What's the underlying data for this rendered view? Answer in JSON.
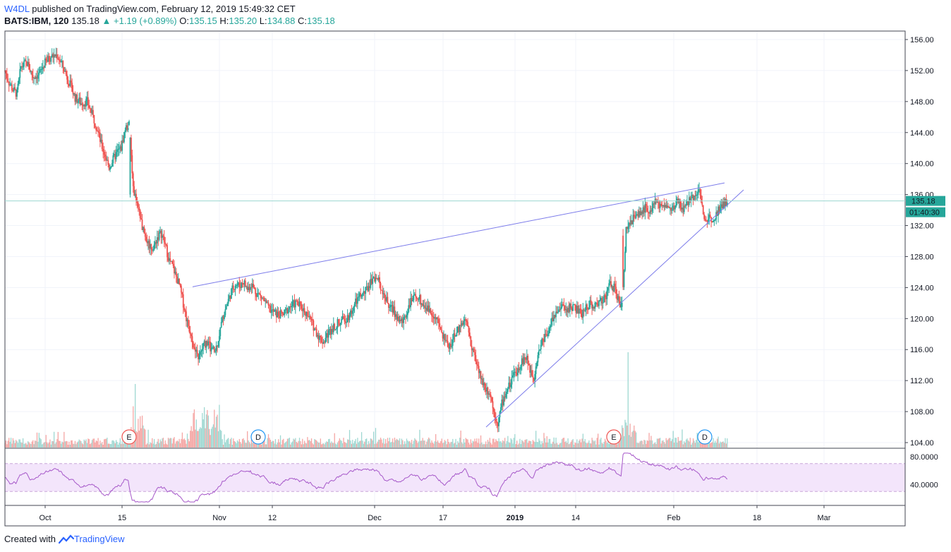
{
  "header": {
    "author": "W4DL",
    "published_text": "published on TradingView.com, February 12, 2019 15:49:32 CET",
    "symbol": "BATS:IBM, 120",
    "last": "135.18",
    "change": "+1.19 (+0.89%)",
    "open_label": "O:",
    "open": "135.15",
    "high_label": "H:",
    "high": "135.20",
    "low_label": "L:",
    "low": "134.88",
    "close_label": "C:",
    "close": "135.18"
  },
  "footer": {
    "created_with": "Created with",
    "brand": "TradingView"
  },
  "colors": {
    "up": "#26a69a",
    "down": "#ef5350",
    "trendline": "#7b7bea",
    "rsi_line": "#a658c9",
    "rsi_band": "#f3e5fb",
    "price_label": "#26a69a"
  },
  "chart_data": {
    "type": "candlestick",
    "title": "BATS:IBM, 120",
    "price_axis": {
      "ticks": [
        "156.00",
        "152.00",
        "148.00",
        "144.00",
        "140.00",
        "136.00",
        "132.00",
        "128.00",
        "124.00",
        "120.00",
        "116.00",
        "112.00",
        "108.00",
        "104.00"
      ],
      "range": [
        103.2,
        157.7
      ]
    },
    "current_price": "135.18",
    "countdown": "01:40:30",
    "time_axis": {
      "labels": [
        "Oct",
        "15",
        "Nov",
        "12",
        "Dec",
        "17",
        "2019",
        "14",
        "Feb",
        "18",
        "Mar"
      ]
    },
    "rsi": {
      "ticks": [
        "80.0000",
        "40.0000"
      ],
      "band": [
        30,
        70
      ],
      "range": [
        10,
        90
      ]
    },
    "events": [
      {
        "label": "E",
        "type": "earnings"
      },
      {
        "label": "D",
        "type": "dividend"
      },
      {
        "label": "E",
        "type": "earnings"
      },
      {
        "label": "D",
        "type": "dividend"
      }
    ],
    "trendlines": [
      {
        "from": [
          124.1,
          "Oct 29"
        ],
        "to": [
          137.5,
          "Feb 11"
        ]
      },
      {
        "from": [
          106.0,
          "Dec 24"
        ],
        "to": [
          136.6,
          "Feb 13"
        ]
      }
    ],
    "price_path": [
      [
        152.0,
        0
      ],
      [
        150.5,
        4
      ],
      [
        149.5,
        8
      ],
      [
        149.0,
        12
      ],
      [
        152.5,
        16
      ],
      [
        153.0,
        22
      ],
      [
        151.2,
        28
      ],
      [
        151.5,
        34
      ],
      [
        153.0,
        40
      ],
      [
        153.8,
        46
      ],
      [
        154.0,
        52
      ],
      [
        152.5,
        58
      ],
      [
        150.5,
        64
      ],
      [
        148.5,
        70
      ],
      [
        147.8,
        76
      ],
      [
        148.0,
        82
      ],
      [
        146.0,
        88
      ],
      [
        144.5,
        92
      ],
      [
        142.5,
        96
      ],
      [
        141.0,
        100
      ],
      [
        139.5,
        104
      ],
      [
        140.5,
        108
      ],
      [
        141.5,
        112
      ],
      [
        142.0,
        116
      ],
      [
        144.5,
        120
      ],
      [
        145.0,
        124
      ],
      [
        136.8,
        128
      ],
      [
        134.5,
        132
      ],
      [
        132.5,
        136
      ],
      [
        130.5,
        140
      ],
      [
        129.5,
        144
      ],
      [
        129.0,
        148
      ],
      [
        130.5,
        152
      ],
      [
        131.0,
        156
      ],
      [
        129.5,
        160
      ],
      [
        127.5,
        164
      ],
      [
        126.5,
        168
      ],
      [
        125.0,
        172
      ],
      [
        124.3,
        174
      ],
      [
        122.0,
        178
      ],
      [
        119.5,
        182
      ],
      [
        118.0,
        186
      ],
      [
        115.5,
        190
      ],
      [
        115.0,
        194
      ],
      [
        116.5,
        198
      ],
      [
        117.0,
        202
      ],
      [
        116.0,
        206
      ],
      [
        115.8,
        210
      ],
      [
        118.0,
        214
      ],
      [
        120.5,
        218
      ],
      [
        122.0,
        222
      ],
      [
        123.5,
        226
      ],
      [
        124.5,
        230
      ],
      [
        124.2,
        234
      ],
      [
        124.8,
        238
      ],
      [
        123.8,
        242
      ],
      [
        124.5,
        246
      ],
      [
        123.5,
        250
      ],
      [
        123.0,
        254
      ],
      [
        122.5,
        258
      ],
      [
        121.5,
        262
      ],
      [
        121.0,
        266
      ],
      [
        120.5,
        272
      ],
      [
        120.5,
        278
      ],
      [
        121.5,
        284
      ],
      [
        122.0,
        290
      ],
      [
        121.5,
        296
      ],
      [
        120.5,
        302
      ],
      [
        119.5,
        306
      ],
      [
        118.5,
        310
      ],
      [
        117.5,
        314
      ],
      [
        117.0,
        318
      ],
      [
        118.0,
        322
      ],
      [
        119.0,
        328
      ],
      [
        119.5,
        334
      ],
      [
        120.0,
        340
      ],
      [
        120.5,
        344
      ],
      [
        121.5,
        348
      ],
      [
        122.5,
        352
      ],
      [
        123.0,
        356
      ],
      [
        123.5,
        360
      ],
      [
        124.5,
        364
      ],
      [
        125.5,
        368
      ],
      [
        125.0,
        372
      ],
      [
        124.0,
        376
      ],
      [
        122.5,
        380
      ],
      [
        121.5,
        384
      ],
      [
        121.0,
        388
      ],
      [
        120.0,
        392
      ],
      [
        119.5,
        396
      ],
      [
        120.5,
        400
      ],
      [
        122.0,
        404
      ],
      [
        122.5,
        408
      ],
      [
        123.0,
        412
      ],
      [
        122.0,
        416
      ],
      [
        121.5,
        420
      ],
      [
        121.0,
        424
      ],
      [
        120.5,
        428
      ],
      [
        119.5,
        432
      ],
      [
        118.0,
        436
      ],
      [
        117.0,
        440
      ],
      [
        116.5,
        444
      ],
      [
        117.5,
        448
      ],
      [
        118.5,
        452
      ],
      [
        119.5,
        456
      ],
      [
        120.0,
        460
      ],
      [
        117.5,
        464
      ],
      [
        115.5,
        468
      ],
      [
        113.5,
        472
      ],
      [
        112.0,
        476
      ],
      [
        111.0,
        480
      ],
      [
        110.5,
        484
      ],
      [
        108.0,
        488
      ],
      [
        106.5,
        492
      ],
      [
        109.0,
        496
      ],
      [
        110.5,
        500
      ],
      [
        111.5,
        504
      ],
      [
        112.5,
        508
      ],
      [
        113.5,
        512
      ],
      [
        114.5,
        516
      ],
      [
        115.0,
        520
      ],
      [
        113.5,
        524
      ],
      [
        112.5,
        528
      ],
      [
        115.5,
        532
      ],
      [
        117.0,
        536
      ],
      [
        118.0,
        540
      ],
      [
        119.0,
        544
      ],
      [
        120.5,
        548
      ],
      [
        121.0,
        552
      ],
      [
        121.5,
        556
      ],
      [
        121.0,
        560
      ],
      [
        121.5,
        564
      ],
      [
        121.5,
        568
      ],
      [
        121.0,
        572
      ],
      [
        120.5,
        576
      ],
      [
        121.5,
        580
      ],
      [
        122.0,
        584
      ],
      [
        121.5,
        588
      ],
      [
        122.0,
        592
      ],
      [
        122.5,
        596
      ],
      [
        123.0,
        600
      ],
      [
        124.5,
        604
      ],
      [
        124.0,
        608
      ],
      [
        122.5,
        612
      ],
      [
        121.5,
        616
      ],
      [
        131.5,
        620
      ],
      [
        132.5,
        624
      ],
      [
        133.0,
        628
      ],
      [
        133.5,
        632
      ],
      [
        134.0,
        636
      ],
      [
        134.5,
        640
      ],
      [
        134.0,
        644
      ],
      [
        135.0,
        648
      ],
      [
        134.5,
        652
      ],
      [
        135.0,
        656
      ],
      [
        134.5,
        660
      ],
      [
        134.0,
        664
      ],
      [
        134.5,
        668
      ],
      [
        135.0,
        672
      ],
      [
        134.0,
        676
      ],
      [
        134.5,
        680
      ],
      [
        135.5,
        684
      ],
      [
        136.0,
        688
      ],
      [
        136.5,
        692
      ],
      [
        136.2,
        694
      ],
      [
        132.5,
        698
      ],
      [
        133.0,
        702
      ],
      [
        133.0,
        706
      ],
      [
        133.5,
        710
      ],
      [
        134.5,
        714
      ],
      [
        135.0,
        718
      ],
      [
        134.5,
        722
      ]
    ]
  }
}
